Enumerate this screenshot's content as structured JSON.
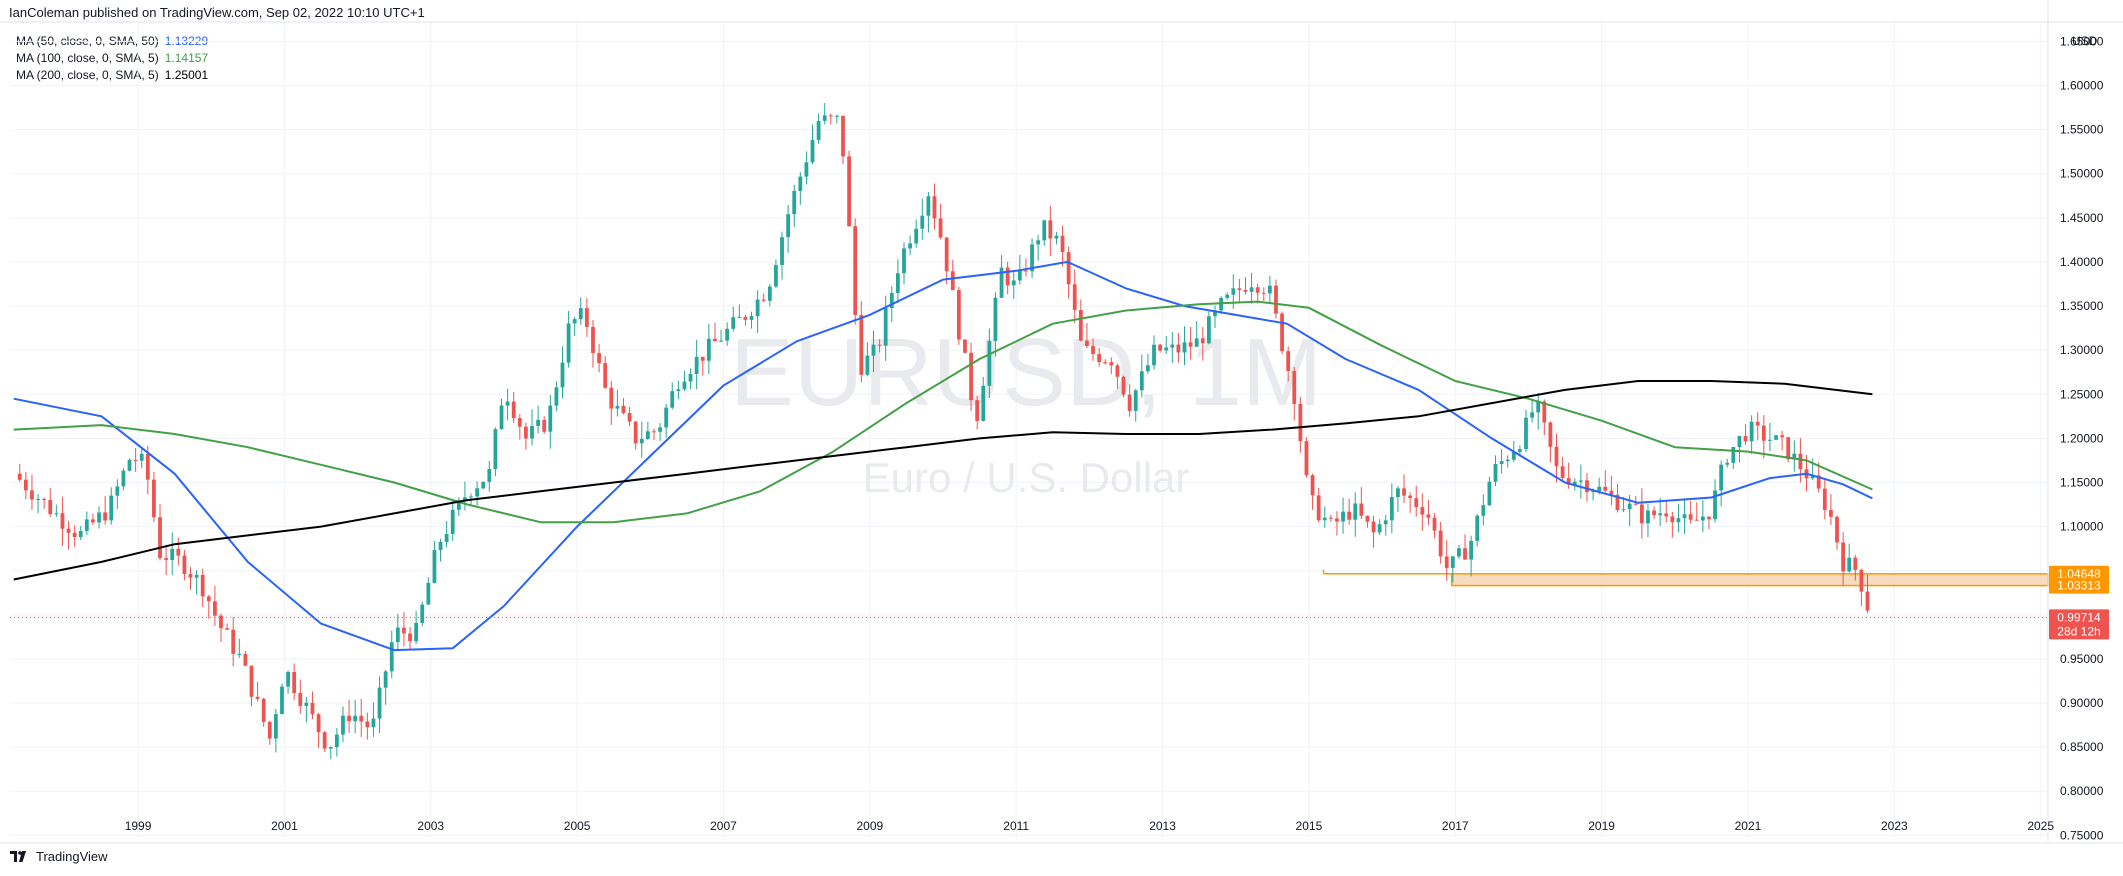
{
  "header": {
    "published": "IanColeman published on TradingView.com, Sep 02, 2022 10:10 UTC+1"
  },
  "legend": [
    {
      "label": "MA (50, close, 0, SMA, 50)",
      "value": "1.13229",
      "color": "#2962ff"
    },
    {
      "label": "MA (100, close, 0, SMA, 5)",
      "value": "1.14157",
      "color": "#43a047"
    },
    {
      "label": "MA (200, close, 0, SMA, 5)",
      "value": "1.25001",
      "color": "#000000"
    }
  ],
  "watermark": {
    "symbol": "EURUSD, 1M",
    "name": "Euro / U.S. Dollar"
  },
  "footer": {
    "brand": "TradingView"
  },
  "colors": {
    "up": "#26a69a",
    "down": "#ef5350",
    "grid": "#f0f3fa",
    "zone": "#ff9800",
    "price": "#ef5350"
  },
  "chart_data": {
    "type": "candlestick",
    "symbol": "EURUSD",
    "interval": "1M",
    "currency": "USD",
    "x_ticks": [
      "1999",
      "2001",
      "2003",
      "2005",
      "2007",
      "2009",
      "2011",
      "2013",
      "2015",
      "2017",
      "2019",
      "2021",
      "2023",
      "2025"
    ],
    "y_ticks": [
      "0.75000",
      "0.80000",
      "0.85000",
      "0.90000",
      "0.95000",
      "1.00000",
      "1.05000",
      "1.10000",
      "1.15000",
      "1.20000",
      "1.25000",
      "1.30000",
      "1.35000",
      "1.40000",
      "1.45000",
      "1.50000",
      "1.55000",
      "1.60000",
      "1.65000"
    ],
    "xlim": [
      1997.25,
      2025.1
    ],
    "ylim": [
      0.747,
      1.672
    ],
    "price_series": [
      [
        1997.3,
        1.16
      ],
      [
        1997.8,
        1.12
      ],
      [
        1998.2,
        1.09
      ],
      [
        1998.6,
        1.12
      ],
      [
        1998.9,
        1.18
      ],
      [
        1999.1,
        1.17
      ],
      [
        1999.3,
        1.07
      ],
      [
        1999.6,
        1.06
      ],
      [
        1999.9,
        1.03
      ],
      [
        2000.1,
        0.99
      ],
      [
        2000.4,
        0.95
      ],
      [
        2000.8,
        0.86
      ],
      [
        2001.0,
        0.94
      ],
      [
        2001.4,
        0.88
      ],
      [
        2001.6,
        0.85
      ],
      [
        2001.9,
        0.89
      ],
      [
        2002.2,
        0.87
      ],
      [
        2002.5,
        0.98
      ],
      [
        2002.8,
        0.98
      ],
      [
        2003.1,
        1.08
      ],
      [
        2003.5,
        1.14
      ],
      [
        2003.8,
        1.16
      ],
      [
        2004.0,
        1.26
      ],
      [
        2004.3,
        1.2
      ],
      [
        2004.6,
        1.22
      ],
      [
        2004.9,
        1.33
      ],
      [
        2005.1,
        1.34
      ],
      [
        2005.4,
        1.25
      ],
      [
        2005.8,
        1.2
      ],
      [
        2006.1,
        1.21
      ],
      [
        2006.4,
        1.27
      ],
      [
        2006.9,
        1.31
      ],
      [
        2007.3,
        1.34
      ],
      [
        2007.6,
        1.37
      ],
      [
        2007.9,
        1.46
      ],
      [
        2008.3,
        1.56
      ],
      [
        2008.6,
        1.56
      ],
      [
        2008.75,
        1.4
      ],
      [
        2008.85,
        1.28
      ],
      [
        2009.1,
        1.3
      ],
      [
        2009.4,
        1.4
      ],
      [
        2009.8,
        1.48
      ],
      [
        2010.0,
        1.42
      ],
      [
        2010.2,
        1.33
      ],
      [
        2010.45,
        1.22
      ],
      [
        2010.8,
        1.39
      ],
      [
        2011.0,
        1.37
      ],
      [
        2011.35,
        1.44
      ],
      [
        2011.6,
        1.42
      ],
      [
        2011.9,
        1.3
      ],
      [
        2012.3,
        1.29
      ],
      [
        2012.55,
        1.24
      ],
      [
        2012.9,
        1.3
      ],
      [
        2013.2,
        1.3
      ],
      [
        2013.5,
        1.31
      ],
      [
        2013.8,
        1.35
      ],
      [
        2014.2,
        1.38
      ],
      [
        2014.45,
        1.37
      ],
      [
        2014.8,
        1.25
      ],
      [
        2015.0,
        1.13
      ],
      [
        2015.3,
        1.1
      ],
      [
        2015.6,
        1.12
      ],
      [
        2015.9,
        1.09
      ],
      [
        2016.2,
        1.14
      ],
      [
        2016.6,
        1.12
      ],
      [
        2016.9,
        1.05
      ],
      [
        2017.2,
        1.08
      ],
      [
        2017.5,
        1.16
      ],
      [
        2017.9,
        1.2
      ],
      [
        2018.1,
        1.24
      ],
      [
        2018.4,
        1.16
      ],
      [
        2018.8,
        1.15
      ],
      [
        2019.2,
        1.13
      ],
      [
        2019.6,
        1.11
      ],
      [
        2019.9,
        1.12
      ],
      [
        2020.2,
        1.1
      ],
      [
        2020.5,
        1.12
      ],
      [
        2020.7,
        1.18
      ],
      [
        2021.0,
        1.21
      ],
      [
        2021.3,
        1.2
      ],
      [
        2021.5,
        1.19
      ],
      [
        2021.8,
        1.16
      ],
      [
        2022.1,
        1.12
      ],
      [
        2022.3,
        1.06
      ],
      [
        2022.5,
        1.05
      ],
      [
        2022.6,
        1.02
      ],
      [
        2022.67,
        1.0
      ]
    ],
    "series": [
      {
        "name": "MA (50, close, 0, SMA, 50)",
        "color": "#2962ff",
        "points": [
          [
            1997.3,
            1.245
          ],
          [
            1998.5,
            1.225
          ],
          [
            1999.5,
            1.16
          ],
          [
            2000.5,
            1.06
          ],
          [
            2001.5,
            0.99
          ],
          [
            2002.5,
            0.96
          ],
          [
            2003.3,
            0.962
          ],
          [
            2004.0,
            1.01
          ],
          [
            2005.0,
            1.1
          ],
          [
            2006.0,
            1.18
          ],
          [
            2007.0,
            1.26
          ],
          [
            2008.0,
            1.31
          ],
          [
            2009.0,
            1.34
          ],
          [
            2010.0,
            1.38
          ],
          [
            2011.0,
            1.39
          ],
          [
            2011.7,
            1.4
          ],
          [
            2012.5,
            1.37
          ],
          [
            2013.3,
            1.35
          ],
          [
            2014.0,
            1.34
          ],
          [
            2014.7,
            1.33
          ],
          [
            2015.5,
            1.29
          ],
          [
            2016.5,
            1.255
          ],
          [
            2017.5,
            1.2
          ],
          [
            2018.5,
            1.15
          ],
          [
            2019.5,
            1.127
          ],
          [
            2020.5,
            1.133
          ],
          [
            2021.3,
            1.155
          ],
          [
            2021.8,
            1.16
          ],
          [
            2022.3,
            1.148
          ],
          [
            2022.7,
            1.132
          ]
        ]
      },
      {
        "name": "MA (100, close, 0, SMA, 5)",
        "color": "#43a047",
        "points": [
          [
            1997.3,
            1.21
          ],
          [
            1998.5,
            1.215
          ],
          [
            1999.5,
            1.205
          ],
          [
            2000.5,
            1.19
          ],
          [
            2001.5,
            1.17
          ],
          [
            2002.5,
            1.15
          ],
          [
            2003.5,
            1.125
          ],
          [
            2004.5,
            1.105
          ],
          [
            2005.5,
            1.105
          ],
          [
            2006.5,
            1.115
          ],
          [
            2007.5,
            1.14
          ],
          [
            2008.5,
            1.185
          ],
          [
            2009.5,
            1.24
          ],
          [
            2010.5,
            1.29
          ],
          [
            2011.5,
            1.33
          ],
          [
            2012.5,
            1.345
          ],
          [
            2013.5,
            1.352
          ],
          [
            2014.3,
            1.355
          ],
          [
            2015.0,
            1.348
          ],
          [
            2016.0,
            1.305
          ],
          [
            2017.0,
            1.265
          ],
          [
            2018.0,
            1.245
          ],
          [
            2019.0,
            1.22
          ],
          [
            2020.0,
            1.19
          ],
          [
            2021.0,
            1.185
          ],
          [
            2021.8,
            1.175
          ],
          [
            2022.7,
            1.142
          ]
        ]
      },
      {
        "name": "MA (200, close, 0, SMA, 5)",
        "color": "#000000",
        "points": [
          [
            1997.3,
            1.04
          ],
          [
            1998.5,
            1.06
          ],
          [
            1999.5,
            1.08
          ],
          [
            2000.5,
            1.09
          ],
          [
            2001.5,
            1.1
          ],
          [
            2002.5,
            1.115
          ],
          [
            2003.5,
            1.13
          ],
          [
            2004.5,
            1.14
          ],
          [
            2005.5,
            1.15
          ],
          [
            2006.5,
            1.16
          ],
          [
            2007.5,
            1.17
          ],
          [
            2008.5,
            1.18
          ],
          [
            2009.5,
            1.19
          ],
          [
            2010.5,
            1.2
          ],
          [
            2011.5,
            1.207
          ],
          [
            2012.5,
            1.205
          ],
          [
            2013.5,
            1.205
          ],
          [
            2014.5,
            1.21
          ],
          [
            2015.5,
            1.217
          ],
          [
            2016.5,
            1.225
          ],
          [
            2017.5,
            1.24
          ],
          [
            2018.5,
            1.255
          ],
          [
            2019.5,
            1.265
          ],
          [
            2020.5,
            1.265
          ],
          [
            2021.5,
            1.262
          ],
          [
            2022.7,
            1.25
          ]
        ]
      }
    ],
    "support_zone": {
      "x_start": 2015.2,
      "x_start_inner": 2016.95,
      "top": 1.04648,
      "bottom": 1.03313
    },
    "price_labels": [
      {
        "text": "1.04648",
        "value": 1.04648,
        "color": "#ff9800"
      },
      {
        "text": "1.03313",
        "value": 1.03313,
        "color": "#ff9800"
      },
      {
        "text": "0.99714",
        "value": 0.99714,
        "color": "#ef5350",
        "sub": "28d 12h"
      }
    ],
    "last_price": 0.99714
  }
}
